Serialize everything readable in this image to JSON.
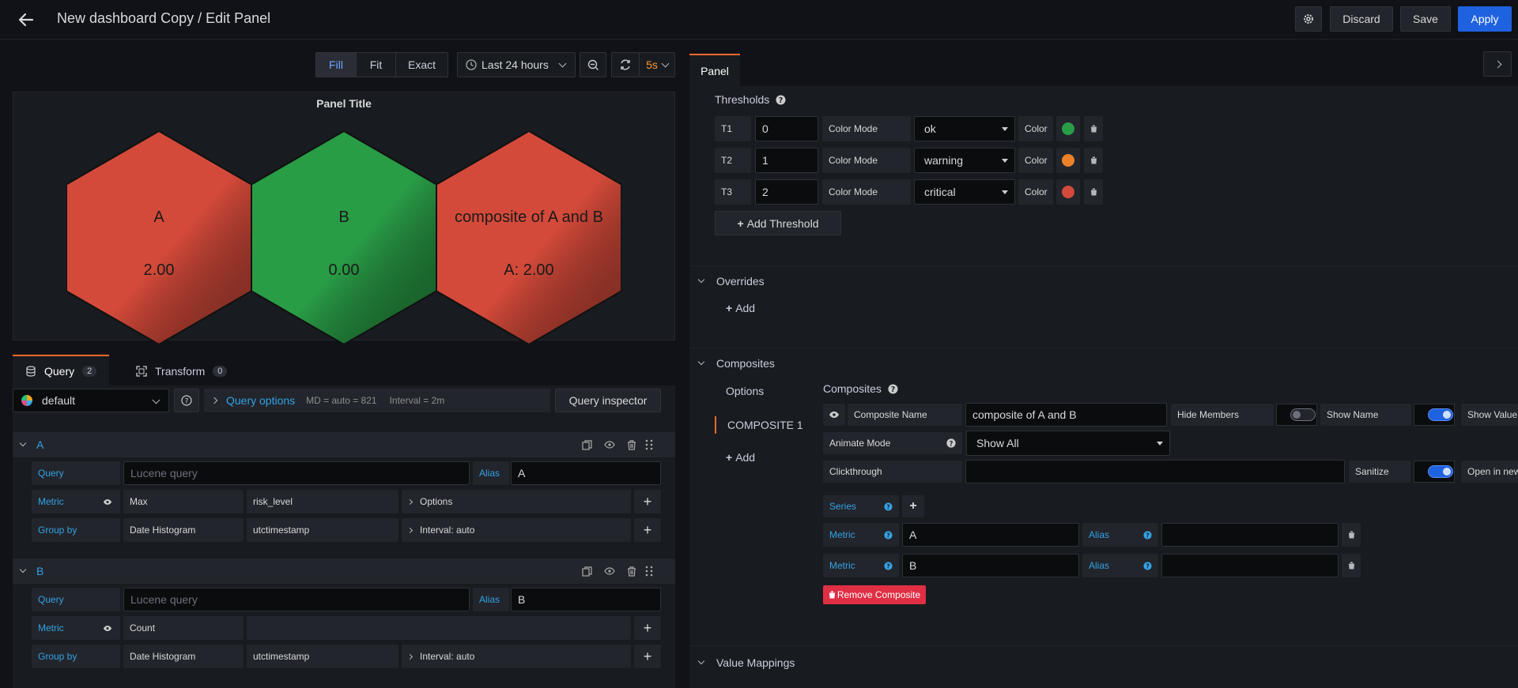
{
  "header": {
    "title": "New dashboard Copy / Edit Panel",
    "discard": "Discard",
    "save": "Save",
    "apply": "Apply"
  },
  "toolbar": {
    "fill": "Fill",
    "fit": "Fit",
    "exact": "Exact",
    "time_range": "Last 24 hours",
    "refresh_interval": "5s"
  },
  "panel": {
    "title": "Panel Title",
    "hexagons": [
      {
        "name": "A",
        "value": "2.00",
        "color": "#d44a3a"
      },
      {
        "name": "B",
        "value": "0.00",
        "color": "#299c46"
      },
      {
        "name": "composite of A and B",
        "value": "A: 2.00",
        "color": "#d44a3a"
      }
    ]
  },
  "tabs": {
    "query": "Query",
    "query_count": "2",
    "transform": "Transform",
    "transform_count": "0"
  },
  "query_bar": {
    "datasource": "default",
    "options": "Query options",
    "md": "MD = auto = 821",
    "interval": "Interval = 2m",
    "inspector": "Query inspector"
  },
  "queries": [
    {
      "ref": "A",
      "query_label": "Query",
      "query_placeholder": "Lucene query",
      "alias_label": "Alias",
      "alias": "A",
      "metric_label": "Metric",
      "metric_type": "Max",
      "metric_field": "risk_level",
      "metric_options": "Options",
      "group_label": "Group by",
      "group_type": "Date Histogram",
      "group_field": "utctimestamp",
      "group_interval": "Interval: auto"
    },
    {
      "ref": "B",
      "query_label": "Query",
      "query_placeholder": "Lucene query",
      "alias_label": "Alias",
      "alias": "B",
      "metric_label": "Metric",
      "metric_type": "Count",
      "group_label": "Group by",
      "group_type": "Date Histogram",
      "group_field": "utctimestamp",
      "group_interval": "Interval: auto"
    }
  ],
  "right": {
    "tab": "Panel",
    "thresholds_title": "Thresholds",
    "thresholds": [
      {
        "id": "T1",
        "value": "0",
        "mode_label": "Color Mode",
        "mode": "ok",
        "color_label": "Color",
        "color": "#299c46"
      },
      {
        "id": "T2",
        "value": "1",
        "mode_label": "Color Mode",
        "mode": "warning",
        "color_label": "Color",
        "color": "#ed8128"
      },
      {
        "id": "T3",
        "value": "2",
        "mode_label": "Color Mode",
        "mode": "critical",
        "color_label": "Color",
        "color": "#d44a3a"
      }
    ],
    "add_threshold": "Add Threshold",
    "overrides_title": "Overrides",
    "overrides_add": "Add",
    "composites_title": "Composites",
    "composites_nav": {
      "options": "Options",
      "item": "COMPOSITE 1",
      "add": "Add"
    },
    "composite": {
      "heading": "Composites",
      "name_label": "Composite Name",
      "name": "composite of A and B",
      "hide_members": "Hide Members",
      "show_name": "Show Name",
      "show_value": "Show Value",
      "animate_label": "Animate Mode",
      "animate": "Show All",
      "clickthrough_label": "Clickthrough",
      "sanitize": "Sanitize",
      "open_new": "Open in new",
      "series_label": "Series",
      "members": [
        {
          "metric_label": "Metric",
          "metric": "A",
          "alias_label": "Alias"
        },
        {
          "metric_label": "Metric",
          "metric": "B",
          "alias_label": "Alias"
        }
      ],
      "remove": "Remove Composite"
    },
    "value_mappings_title": "Value Mappings"
  }
}
